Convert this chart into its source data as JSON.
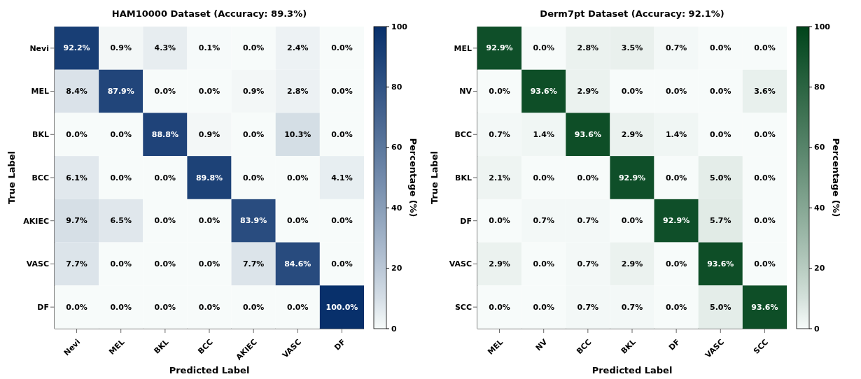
{
  "chart_data": [
    {
      "type": "heatmap",
      "title": "HAM10000 Dataset (Accuracy: 89.3%)",
      "xlabel": "Predicted Label",
      "ylabel": "True Label",
      "clabel": "Percentage (%)",
      "color": "#08306b",
      "categories": [
        "Nevi",
        "MEL",
        "BKL",
        "BCC",
        "AKIEC",
        "VASC",
        "DF"
      ],
      "y_categories": [
        "Nevi",
        "MEL",
        "BKL",
        "BCC",
        "AKIEC",
        "VASC",
        "DF"
      ],
      "cells": [
        [
          92.2,
          0.9,
          4.3,
          0.1,
          0.0,
          2.4,
          0.0
        ],
        [
          8.4,
          87.9,
          0.0,
          0.0,
          0.9,
          2.8,
          0.0
        ],
        [
          0.0,
          0.0,
          88.8,
          0.9,
          0.0,
          10.3,
          0.0
        ],
        [
          6.1,
          0.0,
          0.0,
          89.8,
          0.0,
          0.0,
          4.1
        ],
        [
          9.7,
          6.5,
          0.0,
          0.0,
          83.9,
          0.0,
          0.0
        ],
        [
          7.7,
          0.0,
          0.0,
          0.0,
          7.7,
          84.6,
          0.0
        ],
        [
          0.0,
          0.0,
          0.0,
          0.0,
          0.0,
          0.0,
          100.0
        ]
      ],
      "cell_labels": [
        [
          "92.2%",
          "0.9%",
          "4.3%",
          "0.1%",
          "0.0%",
          "2.4%",
          "0.0%"
        ],
        [
          "8.4%",
          "87.9%",
          "0.0%",
          "0.0%",
          "0.9%",
          "2.8%",
          "0.0%"
        ],
        [
          "0.0%",
          "0.0%",
          "88.8%",
          "0.9%",
          "0.0%",
          "10.3%",
          "0.0%"
        ],
        [
          "6.1%",
          "0.0%",
          "0.0%",
          "89.8%",
          "0.0%",
          "0.0%",
          "4.1%"
        ],
        [
          "9.7%",
          "6.5%",
          "0.0%",
          "0.0%",
          "83.9%",
          "0.0%",
          "0.0%"
        ],
        [
          "7.7%",
          "0.0%",
          "0.0%",
          "0.0%",
          "7.7%",
          "84.6%",
          "0.0%"
        ],
        [
          "0.0%",
          "0.0%",
          "0.0%",
          "0.0%",
          "0.0%",
          "0.0%",
          "100.0%"
        ]
      ],
      "clim": [
        0,
        100
      ],
      "cticks": [
        0,
        20,
        40,
        60,
        80,
        100
      ]
    },
    {
      "type": "heatmap",
      "title": "Derm7pt Dataset (Accuracy: 92.1%)",
      "xlabel": "Predicted Label",
      "ylabel": "True Label",
      "clabel": "Percentage (%)",
      "color": "#00441b",
      "categories": [
        "MEL",
        "NV",
        "BCC",
        "BKL",
        "DF",
        "VASC",
        "SCC"
      ],
      "y_categories": [
        "MEL",
        "NV",
        "BCC",
        "BKL",
        "DF",
        "VASC",
        "SCC"
      ],
      "cells": [
        [
          92.9,
          0.0,
          2.8,
          3.5,
          0.7,
          0.0,
          0.0
        ],
        [
          0.0,
          93.6,
          2.9,
          0.0,
          0.0,
          0.0,
          3.6
        ],
        [
          0.7,
          1.4,
          93.6,
          2.9,
          1.4,
          0.0,
          0.0
        ],
        [
          2.1,
          0.0,
          0.0,
          92.9,
          0.0,
          5.0,
          0.0
        ],
        [
          0.0,
          0.7,
          0.7,
          0.0,
          92.9,
          5.7,
          0.0
        ],
        [
          2.9,
          0.0,
          0.7,
          2.9,
          0.0,
          93.6,
          0.0
        ],
        [
          0.0,
          0.0,
          0.7,
          0.7,
          0.0,
          5.0,
          93.6
        ]
      ],
      "cell_labels": [
        [
          "92.9%",
          "0.0%",
          "2.8%",
          "3.5%",
          "0.7%",
          "0.0%",
          "0.0%"
        ],
        [
          "0.0%",
          "93.6%",
          "2.9%",
          "0.0%",
          "0.0%",
          "0.0%",
          "3.6%"
        ],
        [
          "0.7%",
          "1.4%",
          "93.6%",
          "2.9%",
          "1.4%",
          "0.0%",
          "0.0%"
        ],
        [
          "2.1%",
          "0.0%",
          "0.0%",
          "92.9%",
          "0.0%",
          "5.0%",
          "0.0%"
        ],
        [
          "0.0%",
          "0.7%",
          "0.7%",
          "0.0%",
          "92.9%",
          "5.7%",
          "0.0%"
        ],
        [
          "2.9%",
          "0.0%",
          "0.7%",
          "2.9%",
          "0.0%",
          "93.6%",
          "0.0%"
        ],
        [
          "0.0%",
          "0.0%",
          "0.7%",
          "0.7%",
          "0.0%",
          "5.0%",
          "93.6%"
        ]
      ],
      "clim": [
        0,
        100
      ],
      "cticks": [
        0,
        20,
        40,
        60,
        80,
        100
      ]
    }
  ]
}
